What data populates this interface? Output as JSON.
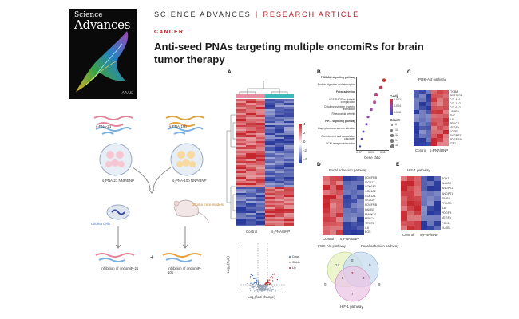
{
  "cover": {
    "brand_line1": "Science",
    "brand_line2": "Advances",
    "logo": "AAAS"
  },
  "header": {
    "journal": "SCIENCE ADVANCES",
    "separator": "|",
    "article_type": "RESEARCH ARTICLE"
  },
  "section": "CANCER",
  "title": "Anti-seed PNAs targeting multiple oncomiRs for brain tumor therapy",
  "schematic": {
    "label_pna21": "s₂PNA-21",
    "label_pna10b": "s₂PNA-10b",
    "label_nnp21": "s₂PNA-21 NNP/BNP",
    "label_nnp10b": "s₂PNA-10b NNP/BNP",
    "label_cells": "Glioma cells",
    "label_mice": "Glioma mice models",
    "label_inhib21": "Inhibition of oncomiR-21",
    "label_inhib10b": "Inhibition of oncomiR-10b",
    "plus": "+"
  },
  "figure": {
    "panel_a": "A",
    "panel_b": "B",
    "panel_c": "C",
    "panel_d": "D",
    "panel_e": "E",
    "heatmap_x_left": "Control",
    "heatmap_x_right": "s₂PNA/BNP",
    "colorbar_ticks": [
      "4",
      "2",
      "0",
      "-2",
      "-4"
    ],
    "pathways_b": [
      "PI3K-Akt signaling pathway",
      "Protein digestion and absorption",
      "Focal adhesion",
      "AGE-RAGE in diabetic complication",
      "Cytokine-cytokine receptor interaction",
      "Rheumatoid arthritis",
      "HIF-1 signaling pathway",
      "Staphylococcus aureus infection",
      "Complement and coagulation cascades",
      "ECM-receptor interaction"
    ],
    "b_xlabel": "Gene ratio",
    "b_xticks": [
      "0.07",
      "0.09",
      "0.11"
    ],
    "b_legend_title": "P.adj",
    "b_legend_vals": [
      "0.002",
      "0.004",
      "0.006"
    ],
    "b_count_title": "Count",
    "b_count_vals": [
      "8",
      "10",
      "12",
      "14",
      "16"
    ],
    "c_title": "PI3K-Akt pathway",
    "c_genes": [
      "ITGB8",
      "PPP2R2B",
      "COL4A1",
      "COL1A2",
      "COL6A2",
      "LAMB3",
      "TNC",
      "IL6",
      "PRKCA",
      "VEGFA",
      "FGFR1",
      "ANGPT2",
      "PDGFRA",
      "IGF1"
    ],
    "d_title": "Focal adhesion pathway",
    "d_genes": [
      "PDGFRB",
      "ITGA11",
      "COL6A3",
      "COL1A2",
      "COL1A1",
      "ITGA10",
      "PDGFRB",
      "LAMB3",
      "MAPK10",
      "PRKCA",
      "VEGFA",
      "IL6",
      "FOS"
    ],
    "e_title": "HIF-1 pathway",
    "e_genes": [
      "PGK1",
      "ALDOC",
      "ANGPT2",
      "ANGPT1",
      "TIMP1",
      "PRKCA",
      "IL6",
      "PDGFB",
      "VEGFA",
      "PGK1",
      "ELOB1"
    ],
    "volcano_ylabel": "-Log₁₀(Pₐdⱼ)",
    "volcano_xlabel": "Log₂(fold change)",
    "volcano_legend": [
      "Down",
      "Stable",
      "Up"
    ],
    "venn_label1": "PI3K-Akt pathway",
    "venn_label2": "Focal adhesion pathway",
    "venn_label3": "HIF-1 pathway",
    "venn_nums": [
      "14",
      "0",
      "0",
      "5",
      "3",
      "7",
      "0",
      "9"
    ],
    "venn_center": "3"
  },
  "colors": {
    "accent_red": "#b2222b",
    "heat_red": "#c6262e",
    "heat_blue": "#2a3a9c",
    "teal_bar": "#3fb7b8",
    "pink_bar": "#e58ea4"
  }
}
